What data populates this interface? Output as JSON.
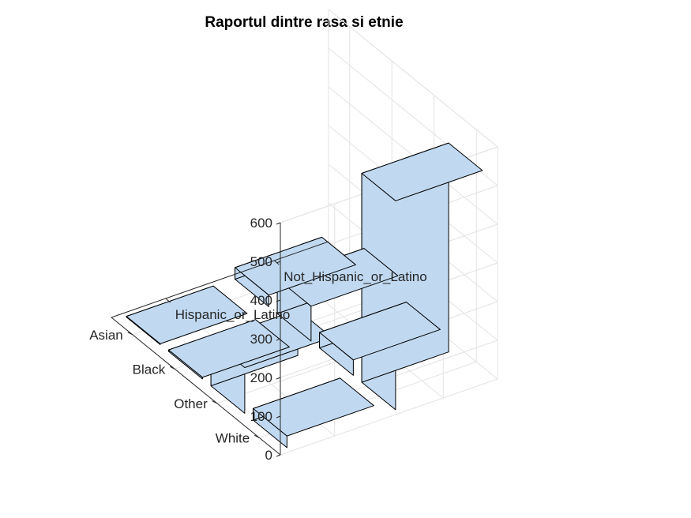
{
  "chart_data": {
    "type": "bar3",
    "title": "Raportul dintre rasa si etnie",
    "x_categories": [
      "Hispanic_or_Latino",
      "Not_Hispanic_or_Latino"
    ],
    "y_categories": [
      "Asian",
      "Black",
      "Other",
      "White"
    ],
    "z_ticks": [
      "0",
      "100",
      "200",
      "300",
      "400",
      "500",
      "600"
    ],
    "zlim": [
      0,
      600
    ],
    "grid": true,
    "bar_color": "#c0d9f1",
    "edge_color": "#000000",
    "values": [
      {
        "ethnicity": "Hispanic_or_Latino",
        "race": "Asian",
        "value": 2
      },
      {
        "ethnicity": "Hispanic_or_Latino",
        "race": "Black",
        "value": 4
      },
      {
        "ethnicity": "Hispanic_or_Latino",
        "race": "Other",
        "value": 118
      },
      {
        "ethnicity": "Hispanic_or_Latino",
        "race": "White",
        "value": 30
      },
      {
        "ethnicity": "Not_Hispanic_or_Latino",
        "race": "Asian",
        "value": 30
      },
      {
        "ethnicity": "Not_Hispanic_or_Latino",
        "race": "Black",
        "value": 90
      },
      {
        "ethnicity": "Not_Hispanic_or_Latino",
        "race": "Other",
        "value": 40
      },
      {
        "ethnicity": "Not_Hispanic_or_Latino",
        "race": "White",
        "value": 540
      }
    ]
  }
}
